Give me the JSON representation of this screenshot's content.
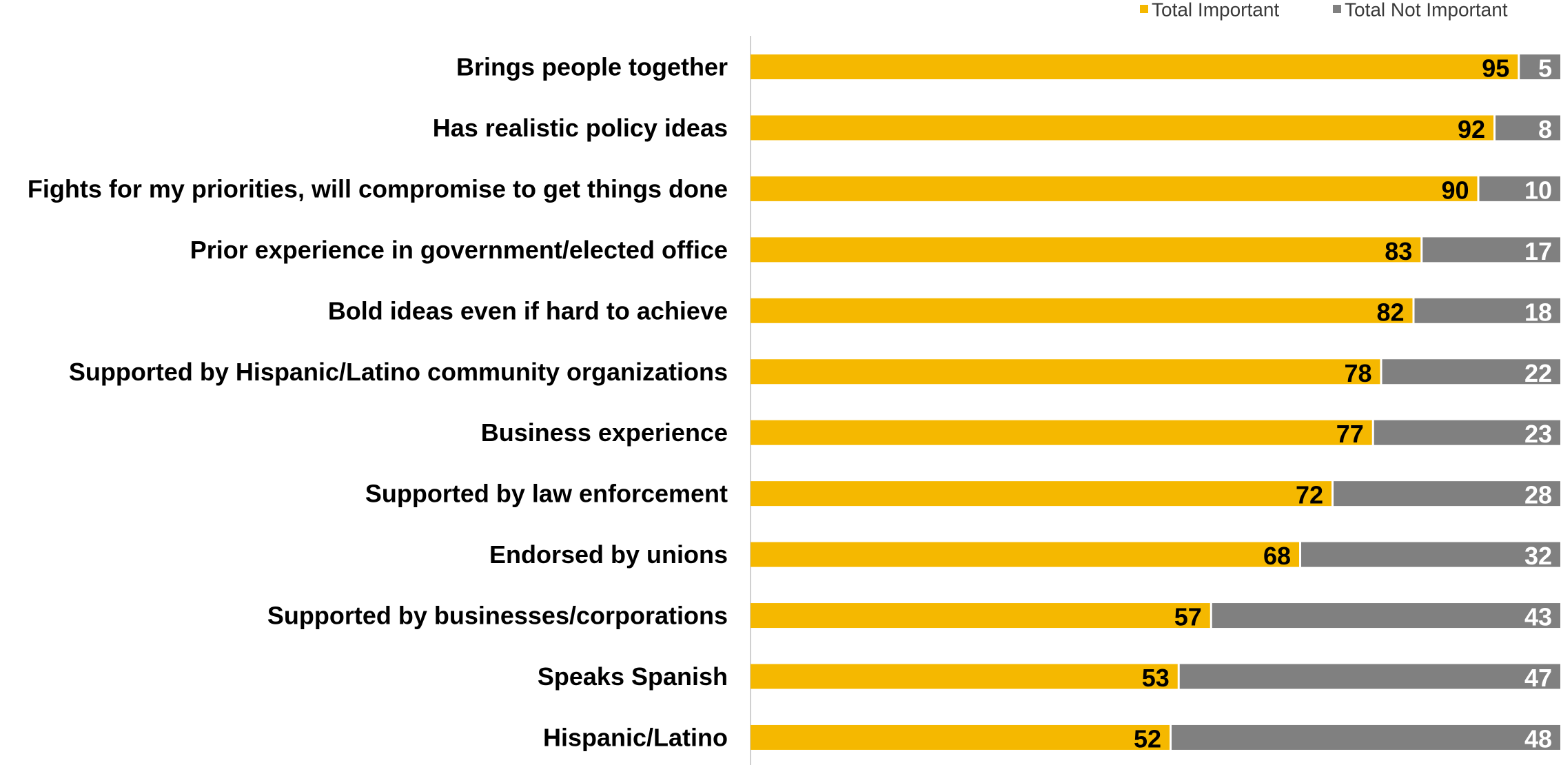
{
  "chart_data": {
    "type": "bar",
    "orientation": "horizontal",
    "stacked": true,
    "categories": [
      "Brings people together",
      "Has realistic policy ideas",
      "Fights for my priorities, will compromise to get things done",
      "Prior experience in government/elected office",
      "Bold ideas even if hard to achieve",
      "Supported by Hispanic/Latino community organizations",
      "Business experience",
      "Supported by law enforcement",
      "Endorsed by unions",
      "Supported by businesses/corporations",
      "Speaks Spanish",
      "Hispanic/Latino"
    ],
    "series": [
      {
        "name": "Total Important",
        "color": "#F5B800",
        "label_color": "#000000",
        "values": [
          95,
          92,
          90,
          83,
          82,
          78,
          77,
          72,
          68,
          57,
          53,
          52
        ]
      },
      {
        "name": "Total Not Important",
        "color": "#808080",
        "label_color": "#FFFFFF",
        "values": [
          5,
          8,
          10,
          17,
          18,
          22,
          23,
          28,
          32,
          43,
          47,
          48
        ]
      }
    ],
    "xlim": [
      0,
      100
    ],
    "grid": false,
    "legend": "top-right"
  }
}
